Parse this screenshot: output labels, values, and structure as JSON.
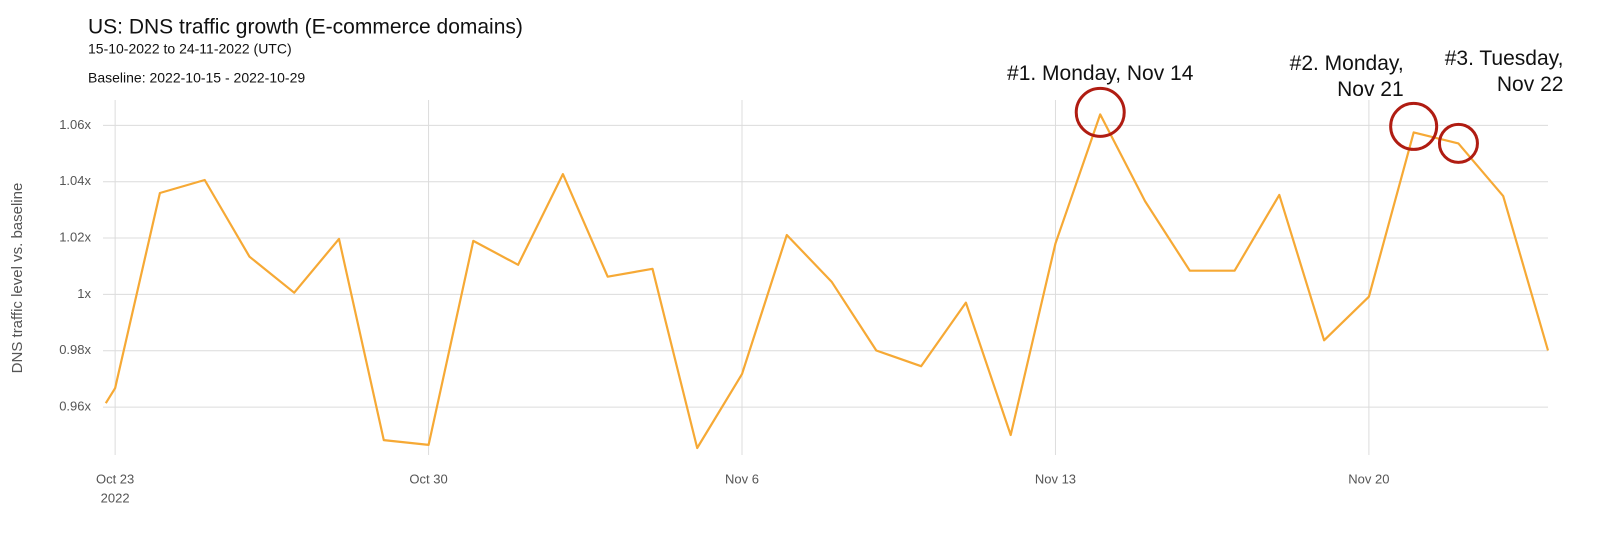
{
  "chart_data": {
    "type": "line",
    "title": "US: DNS traffic growth (E-commerce domains)",
    "subtitle": "15-10-2022 to 24-11-2022 (UTC)",
    "baseline_note": "Baseline: 2022-10-15 - 2022-10-29",
    "y_label": "DNS traffic level vs. baseline",
    "x": [
      "2022-10-22T19:00",
      "2022-10-23",
      "2022-10-24",
      "2022-10-25",
      "2022-10-26",
      "2022-10-27",
      "2022-10-28",
      "2022-10-29",
      "2022-10-30",
      "2022-10-31",
      "2022-11-01",
      "2022-11-02",
      "2022-11-03",
      "2022-11-04",
      "2022-11-05",
      "2022-11-06",
      "2022-11-07",
      "2022-11-08",
      "2022-11-09",
      "2022-11-10",
      "2022-11-11",
      "2022-11-12",
      "2022-11-13",
      "2022-11-14",
      "2022-11-15",
      "2022-11-16",
      "2022-11-17",
      "2022-11-18",
      "2022-11-19",
      "2022-11-20",
      "2022-11-21",
      "2022-11-22",
      "2022-11-23",
      "2022-11-24"
    ],
    "series": [
      {
        "name": "DNS traffic",
        "color": "#f6a935",
        "values": [
          0.9614,
          0.9667,
          1.036,
          1.0406,
          1.0134,
          1.0006,
          1.0197,
          0.9483,
          0.9466,
          1.019,
          1.0105,
          1.0427,
          1.0063,
          1.0091,
          0.9455,
          0.9717,
          1.0211,
          1.0045,
          0.9801,
          0.9745,
          0.9971,
          0.9501,
          1.018,
          1.0639,
          1.0331,
          1.0084,
          1.0084,
          1.0353,
          0.9837,
          0.9992,
          1.0575,
          1.0536,
          1.0349,
          0.9801
        ]
      }
    ],
    "xlim": [
      "2022-10-22T17:30",
      "2022-11-24"
    ],
    "xticks": [
      {
        "value": "2022-10-23",
        "label": "Oct 23",
        "sublabel": "2022"
      },
      {
        "value": "2022-10-30",
        "label": "Oct 30"
      },
      {
        "value": "2022-11-06",
        "label": "Nov 6"
      },
      {
        "value": "2022-11-13",
        "label": "Nov 13"
      },
      {
        "value": "2022-11-20",
        "label": "Nov 20"
      }
    ],
    "ylim": [
      0.943,
      1.069
    ],
    "yticks": [
      {
        "value": 0.96,
        "label": "0.96x"
      },
      {
        "value": 0.98,
        "label": "0.98x"
      },
      {
        "value": 1,
        "label": "1x"
      },
      {
        "value": 1.02,
        "label": "1.02x"
      },
      {
        "value": 1.04,
        "label": "1.04x"
      },
      {
        "value": 1.06,
        "label": "1.06x"
      }
    ],
    "grid": true,
    "annotations": [
      {
        "lines": [
          "#1. Monday, Nov 14"
        ],
        "x": "2022-11-14"
      },
      {
        "lines": [
          "#2. Monday,",
          "Nov 21"
        ],
        "x": "2022-11-21"
      },
      {
        "lines": [
          "#3. Tuesday,",
          "Nov 22"
        ],
        "x": "2022-11-22"
      }
    ],
    "annotation_color": "#b01c12"
  }
}
